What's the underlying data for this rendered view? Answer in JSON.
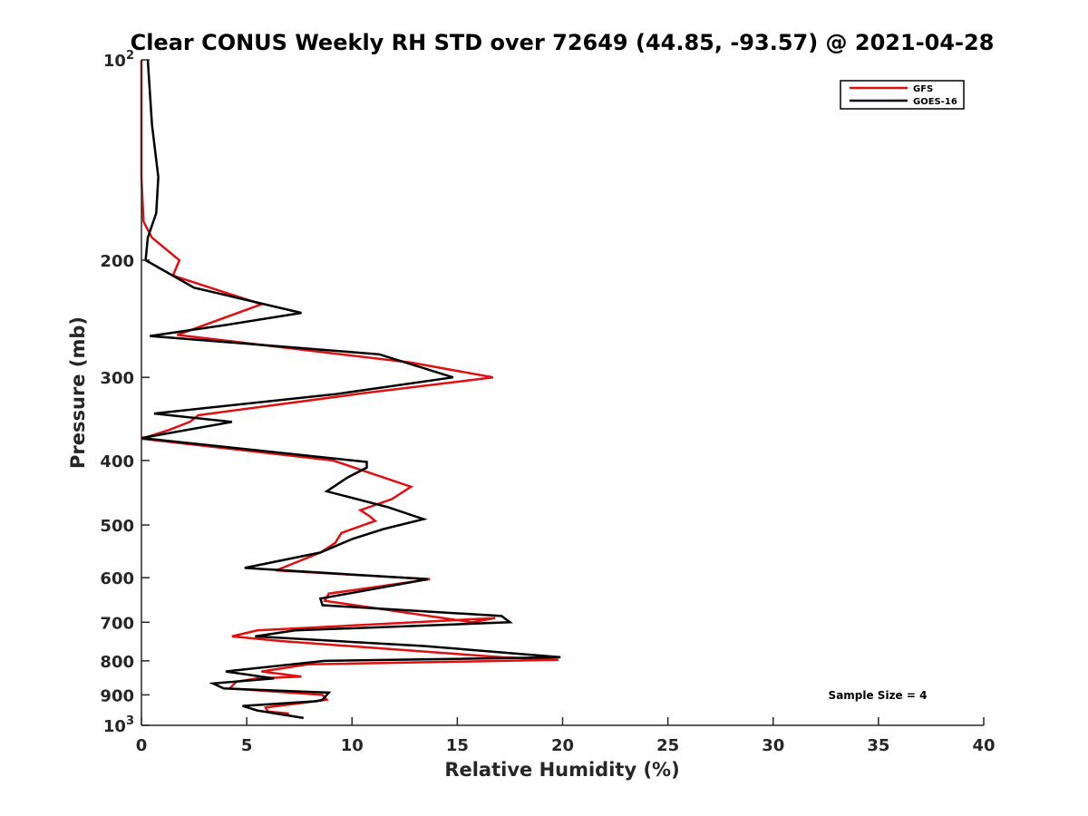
{
  "chart_data": {
    "type": "line",
    "title": "Clear CONUS Weekly RH STD over 72649 (44.85, -93.57) @ 2021-04-28",
    "xlabel": "Relative Humidity (%)",
    "ylabel": "Pressure (mb)",
    "xlim": [
      0,
      40
    ],
    "ylim": [
      100,
      1000
    ],
    "y_scale": "log",
    "y_reversed": true,
    "x_ticks": [
      0,
      5,
      10,
      15,
      20,
      25,
      30,
      35,
      40
    ],
    "y_ticks": [
      {
        "value": 100,
        "label": "10",
        "sup": "2"
      },
      {
        "value": 200,
        "label": "200",
        "sup": ""
      },
      {
        "value": 300,
        "label": "300",
        "sup": ""
      },
      {
        "value": 400,
        "label": "400",
        "sup": ""
      },
      {
        "value": 500,
        "label": "500",
        "sup": ""
      },
      {
        "value": 600,
        "label": "600",
        "sup": ""
      },
      {
        "value": 700,
        "label": "700",
        "sup": ""
      },
      {
        "value": 800,
        "label": "800",
        "sup": ""
      },
      {
        "value": 900,
        "label": "900",
        "sup": ""
      },
      {
        "value": 1000,
        "label": "10",
        "sup": "3"
      }
    ],
    "grid": false,
    "legend_position": "top-right",
    "annotation": "Sample Size = 4",
    "series": [
      {
        "name": "GFS",
        "color": "#e01010",
        "points": [
          [
            0.0,
            100
          ],
          [
            0.0,
            125
          ],
          [
            0.0,
            150
          ],
          [
            0.1,
            175
          ],
          [
            0.5,
            185
          ],
          [
            1.8,
            200
          ],
          [
            1.5,
            211
          ],
          [
            5.7,
            233
          ],
          [
            1.7,
            259
          ],
          [
            12.8,
            285
          ],
          [
            16.7,
            300
          ],
          [
            10.5,
            317
          ],
          [
            2.7,
            342
          ],
          [
            2.3,
            350
          ],
          [
            1.3,
            360
          ],
          [
            0.0,
            371
          ],
          [
            9.1,
            400
          ],
          [
            12.8,
            438
          ],
          [
            11.9,
            457
          ],
          [
            10.4,
            475
          ],
          [
            10.8,
            484
          ],
          [
            11.1,
            493
          ],
          [
            9.5,
            514
          ],
          [
            9.2,
            532
          ],
          [
            8.5,
            550
          ],
          [
            6.4,
            585
          ],
          [
            13.7,
            603
          ],
          [
            8.9,
            634
          ],
          [
            8.7,
            650
          ],
          [
            15.7,
            700
          ],
          [
            16.8,
            690
          ],
          [
            5.5,
            720
          ],
          [
            4.3,
            735
          ],
          [
            6.6,
            747
          ],
          [
            17.1,
            790
          ],
          [
            19.8,
            797
          ],
          [
            7.9,
            810
          ],
          [
            5.7,
            830
          ],
          [
            7.6,
            845
          ],
          [
            5.5,
            850
          ],
          [
            4.5,
            860
          ],
          [
            4.2,
            880
          ],
          [
            8.6,
            900
          ],
          [
            8.8,
            915
          ],
          [
            8.3,
            920
          ],
          [
            5.9,
            940
          ],
          [
            6.0,
            953
          ],
          [
            7.0,
            960
          ],
          [
            6.7,
            965
          ]
        ]
      },
      {
        "name": "GOES-16",
        "color": "#000000",
        "points": [
          [
            0.3,
            100
          ],
          [
            0.5,
            125
          ],
          [
            0.8,
            150
          ],
          [
            0.7,
            170
          ],
          [
            0.3,
            185
          ],
          [
            0.2,
            200
          ],
          [
            2.5,
            220
          ],
          [
            7.6,
            240
          ],
          [
            4.1,
            250
          ],
          [
            0.4,
            260
          ],
          [
            11.3,
            277
          ],
          [
            14.8,
            300
          ],
          [
            9.2,
            318
          ],
          [
            0.6,
            340
          ],
          [
            4.3,
            350
          ],
          [
            0.0,
            370
          ],
          [
            10.7,
            402
          ],
          [
            10.7,
            410
          ],
          [
            9.8,
            424
          ],
          [
            8.8,
            445
          ],
          [
            11.7,
            470
          ],
          [
            13.4,
            490
          ],
          [
            11.5,
            507
          ],
          [
            10.0,
            525
          ],
          [
            8.5,
            550
          ],
          [
            4.9,
            580
          ],
          [
            13.6,
            603
          ],
          [
            8.5,
            645
          ],
          [
            8.6,
            660
          ],
          [
            17.1,
            685
          ],
          [
            17.5,
            700
          ],
          [
            7.3,
            720
          ],
          [
            5.4,
            735
          ],
          [
            13.4,
            760
          ],
          [
            19.9,
            790
          ],
          [
            8.7,
            800
          ],
          [
            4.0,
            830
          ],
          [
            6.3,
            850
          ],
          [
            3.4,
            865
          ],
          [
            3.9,
            880
          ],
          [
            8.9,
            893
          ],
          [
            8.6,
            915
          ],
          [
            8.3,
            920
          ],
          [
            4.8,
            935
          ],
          [
            5.5,
            950
          ],
          [
            7.7,
            975
          ]
        ]
      }
    ]
  }
}
